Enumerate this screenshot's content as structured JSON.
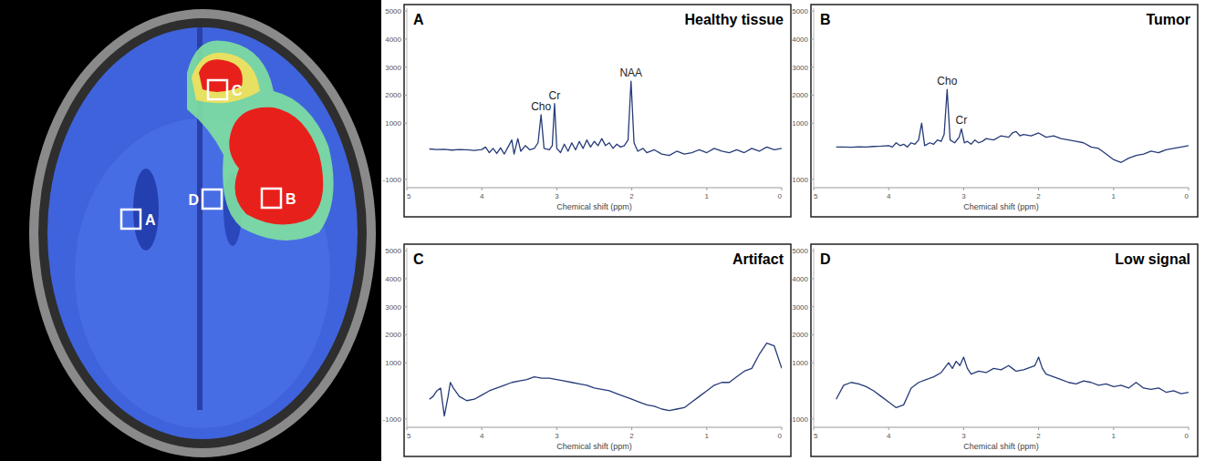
{
  "image": {
    "rois": [
      "A",
      "B",
      "C",
      "D"
    ]
  },
  "chart_data": [
    {
      "type": "line",
      "letter": "A",
      "title": "Healthy tissue",
      "xlabel": "Chemical shift (ppm)",
      "xlim": [
        5,
        0
      ],
      "ylim": [
        -1300,
        5100
      ],
      "xticks": [
        5,
        4,
        3,
        2,
        1,
        0
      ],
      "yticks": [
        -1000,
        1000,
        2000,
        3000,
        4000,
        5000
      ],
      "x": [
        4.7,
        4.6,
        4.5,
        4.4,
        4.3,
        4.2,
        4.1,
        4.0,
        3.95,
        3.9,
        3.85,
        3.8,
        3.75,
        3.7,
        3.65,
        3.6,
        3.57,
        3.52,
        3.48,
        3.42,
        3.36,
        3.3,
        3.25,
        3.21,
        3.17,
        3.1,
        3.06,
        3.03,
        3.0,
        2.95,
        2.9,
        2.85,
        2.8,
        2.75,
        2.7,
        2.65,
        2.6,
        2.55,
        2.5,
        2.45,
        2.4,
        2.35,
        2.3,
        2.25,
        2.2,
        2.15,
        2.1,
        2.05,
        2.01,
        1.97,
        1.92,
        1.85,
        1.8,
        1.7,
        1.6,
        1.5,
        1.4,
        1.3,
        1.2,
        1.1,
        1.0,
        0.9,
        0.8,
        0.7,
        0.6,
        0.5,
        0.4,
        0.3,
        0.2,
        0.1,
        0.0
      ],
      "series": [
        {
          "color": "#263b78",
          "values": [
            80,
            60,
            70,
            40,
            60,
            50,
            30,
            60,
            150,
            -50,
            100,
            -80,
            120,
            -100,
            150,
            400,
            -100,
            450,
            0,
            200,
            50,
            100,
            300,
            1300,
            100,
            50,
            200,
            1700,
            100,
            -50,
            250,
            0,
            300,
            50,
            350,
            100,
            400,
            150,
            350,
            200,
            450,
            200,
            300,
            100,
            250,
            150,
            200,
            400,
            2500,
            300,
            0,
            100,
            -50,
            50,
            -100,
            -150,
            0,
            -100,
            -50,
            50,
            -50,
            100,
            0,
            -50,
            50,
            -50,
            100,
            0,
            150,
            50,
            100
          ]
        }
      ],
      "annotations": [
        {
          "text": "Cho",
          "x": 3.21,
          "y": 1300
        },
        {
          "text": "Cr",
          "x": 3.03,
          "y": 1700
        },
        {
          "text": "NAA",
          "x": 2.01,
          "y": 2500
        }
      ]
    },
    {
      "type": "line",
      "letter": "B",
      "title": "Tumor",
      "xlabel": "Chemical shift (ppm)",
      "xlim": [
        5,
        0
      ],
      "ylim": [
        -1300,
        5100
      ],
      "xticks": [
        5,
        4,
        3,
        2,
        1,
        0
      ],
      "yticks": [
        -1000,
        1000,
        2000,
        3000,
        4000,
        5000
      ],
      "x": [
        4.7,
        4.6,
        4.5,
        4.4,
        4.3,
        4.2,
        4.1,
        4.0,
        3.95,
        3.9,
        3.85,
        3.8,
        3.75,
        3.7,
        3.65,
        3.6,
        3.56,
        3.52,
        3.45,
        3.4,
        3.35,
        3.3,
        3.26,
        3.22,
        3.18,
        3.12,
        3.06,
        3.03,
        2.99,
        2.95,
        2.9,
        2.85,
        2.8,
        2.75,
        2.7,
        2.6,
        2.5,
        2.4,
        2.35,
        2.3,
        2.25,
        2.2,
        2.1,
        2.0,
        1.9,
        1.8,
        1.7,
        1.6,
        1.5,
        1.4,
        1.3,
        1.2,
        1.1,
        1.0,
        0.9,
        0.8,
        0.7,
        0.6,
        0.5,
        0.4,
        0.3,
        0.2,
        0.1,
        0.0
      ],
      "series": [
        {
          "color": "#263b78",
          "values": [
            150,
            150,
            140,
            160,
            150,
            170,
            180,
            200,
            150,
            300,
            200,
            250,
            150,
            300,
            250,
            400,
            1000,
            200,
            300,
            250,
            400,
            350,
            600,
            2200,
            400,
            300,
            500,
            800,
            300,
            350,
            250,
            400,
            300,
            350,
            450,
            400,
            550,
            500,
            650,
            700,
            550,
            600,
            550,
            650,
            500,
            550,
            450,
            400,
            350,
            300,
            150,
            100,
            -100,
            -300,
            -400,
            -250,
            -150,
            -100,
            0,
            -50,
            50,
            100,
            150,
            200
          ]
        }
      ],
      "annotations": [
        {
          "text": "Cho",
          "x": 3.22,
          "y": 2200
        },
        {
          "text": "Cr",
          "x": 3.03,
          "y": 800
        }
      ]
    },
    {
      "type": "line",
      "letter": "C",
      "title": "Artifact",
      "xlabel": "Chemical shift (ppm)",
      "xlim": [
        5,
        0
      ],
      "ylim": [
        -1300,
        5100
      ],
      "xticks": [
        5,
        4,
        3,
        2,
        1,
        0
      ],
      "yticks": [
        -1000,
        1000,
        2000,
        3000,
        4000,
        5000
      ],
      "x": [
        4.7,
        4.65,
        4.6,
        4.55,
        4.5,
        4.45,
        4.42,
        4.38,
        4.3,
        4.2,
        4.1,
        4.0,
        3.9,
        3.8,
        3.7,
        3.6,
        3.5,
        3.4,
        3.3,
        3.2,
        3.1,
        3.0,
        2.9,
        2.8,
        2.7,
        2.6,
        2.5,
        2.4,
        2.3,
        2.2,
        2.1,
        2.0,
        1.9,
        1.8,
        1.7,
        1.6,
        1.5,
        1.4,
        1.3,
        1.2,
        1.1,
        1.0,
        0.9,
        0.8,
        0.7,
        0.6,
        0.5,
        0.4,
        0.3,
        0.2,
        0.1,
        0.0
      ],
      "series": [
        {
          "color": "#263b78",
          "values": [
            -300,
            -200,
            0,
            100,
            -900,
            -200,
            300,
            100,
            -200,
            -350,
            -300,
            -150,
            0,
            100,
            200,
            300,
            350,
            400,
            500,
            450,
            450,
            400,
            350,
            300,
            250,
            200,
            100,
            50,
            0,
            -100,
            -200,
            -300,
            -400,
            -500,
            -550,
            -650,
            -700,
            -650,
            -600,
            -400,
            -200,
            0,
            200,
            300,
            300,
            500,
            700,
            800,
            1300,
            1700,
            1600,
            800
          ]
        }
      ],
      "annotations": []
    },
    {
      "type": "line",
      "letter": "D",
      "title": "Low signal",
      "xlabel": "Chemical shift (ppm)",
      "xlim": [
        5,
        0
      ],
      "ylim": [
        -1300,
        5100
      ],
      "xticks": [
        5,
        4,
        3,
        2,
        1,
        0
      ],
      "yticks": [
        -1000,
        1000,
        2000,
        3000,
        4000,
        5000
      ],
      "x": [
        4.7,
        4.6,
        4.5,
        4.4,
        4.3,
        4.2,
        4.1,
        4.0,
        3.9,
        3.8,
        3.75,
        3.7,
        3.6,
        3.5,
        3.4,
        3.3,
        3.2,
        3.15,
        3.1,
        3.05,
        3.0,
        2.95,
        2.9,
        2.8,
        2.7,
        2.6,
        2.5,
        2.4,
        2.35,
        2.3,
        2.2,
        2.1,
        2.05,
        2.0,
        1.95,
        1.9,
        1.8,
        1.7,
        1.6,
        1.5,
        1.4,
        1.3,
        1.2,
        1.1,
        1.0,
        0.9,
        0.8,
        0.7,
        0.6,
        0.5,
        0.4,
        0.3,
        0.2,
        0.1,
        0.0
      ],
      "series": [
        {
          "color": "#263b78",
          "values": [
            -300,
            200,
            300,
            250,
            150,
            0,
            -200,
            -400,
            -600,
            -500,
            -200,
            100,
            300,
            400,
            500,
            650,
            1000,
            800,
            1050,
            900,
            1200,
            800,
            600,
            700,
            650,
            800,
            750,
            900,
            800,
            700,
            750,
            850,
            900,
            1200,
            800,
            600,
            500,
            400,
            300,
            250,
            350,
            300,
            200,
            250,
            150,
            200,
            100,
            300,
            100,
            50,
            100,
            -50,
            0,
            -100,
            -50
          ]
        }
      ],
      "annotations": []
    }
  ]
}
